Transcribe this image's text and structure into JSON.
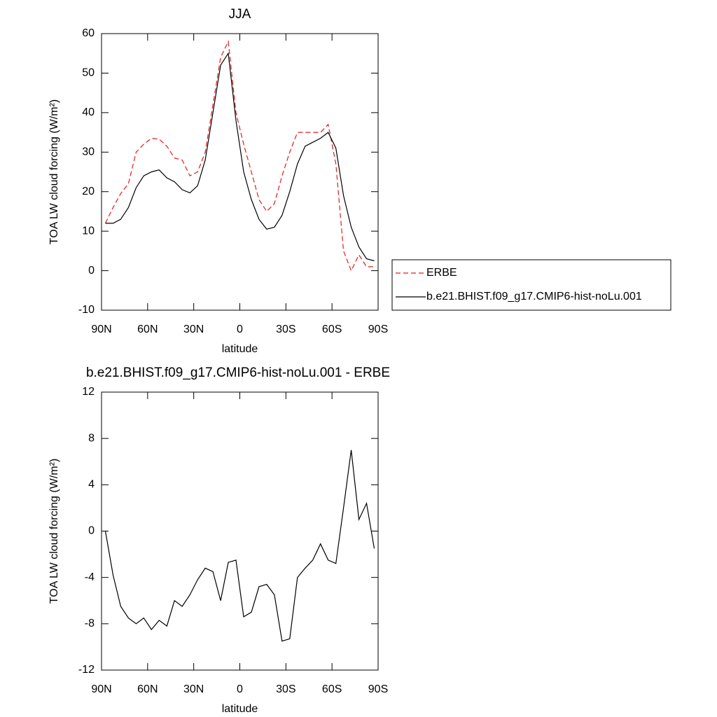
{
  "chart_data": [
    {
      "type": "line",
      "title": "JJA",
      "xlabel": "latitude",
      "ylabel": "TOA LW cloud forcing (W/m²)",
      "x": [
        87.5,
        82.5,
        77.5,
        72.5,
        67.5,
        62.5,
        57.5,
        52.5,
        47.5,
        42.5,
        37.5,
        32.5,
        27.5,
        22.5,
        17.5,
        12.5,
        7.5,
        2.5,
        -2.5,
        -7.5,
        -12.5,
        -17.5,
        -22.5,
        -27.5,
        -32.5,
        -37.5,
        -42.5,
        -47.5,
        -52.5,
        -57.5,
        -62.5,
        -67.5,
        -72.5,
        -77.5,
        -82.5,
        -87.5
      ],
      "xlim": [
        90,
        -90
      ],
      "xticks": [
        {
          "value": 90,
          "label": "90N"
        },
        {
          "value": 60,
          "label": "60N"
        },
        {
          "value": 30,
          "label": "30N"
        },
        0,
        {
          "value": -30,
          "label": "30S"
        },
        {
          "value": -60,
          "label": "60S"
        },
        {
          "value": -90,
          "label": "90S"
        }
      ],
      "ylim": [
        -10,
        60
      ],
      "yticks": [
        -10,
        0,
        10,
        20,
        30,
        40,
        50,
        60
      ],
      "legend": "right",
      "series": [
        {
          "name": "ERBE",
          "color": "#e41a1c",
          "dash": true,
          "values": [
            12,
            16,
            19.5,
            22,
            30,
            32,
            33.5,
            33.3,
            31.5,
            28.5,
            28,
            24,
            25,
            30,
            42,
            54,
            58,
            40,
            32,
            25,
            18,
            15,
            17,
            24,
            30,
            35,
            35,
            35,
            35,
            37,
            27,
            5,
            0,
            4,
            1,
            1
          ]
        },
        {
          "name": "b.e21.BHIST.f09_g17.CMIP6-hist-noLu.001",
          "color": "#000000",
          "dash": false,
          "values": [
            12,
            12,
            13,
            16,
            21,
            24,
            25,
            25.5,
            23.5,
            22.5,
            20.5,
            19.7,
            21.5,
            28,
            40,
            52,
            55,
            38,
            25,
            18,
            13,
            10.5,
            11,
            14,
            20,
            27,
            31.5,
            32.5,
            33.5,
            35,
            31,
            19,
            11,
            6,
            3,
            2.5
          ]
        }
      ]
    },
    {
      "type": "line",
      "title": "b.e21.BHIST.f09_g17.CMIP6-hist-noLu.001 - ERBE",
      "xlabel": "latitude",
      "ylabel": "TOA LW cloud forcing (W/m²)",
      "x": [
        87.5,
        82.5,
        77.5,
        72.5,
        67.5,
        62.5,
        57.5,
        52.5,
        47.5,
        42.5,
        37.5,
        32.5,
        27.5,
        22.5,
        17.5,
        12.5,
        7.5,
        2.5,
        -2.5,
        -7.5,
        -12.5,
        -17.5,
        -22.5,
        -27.5,
        -32.5,
        -37.5,
        -42.5,
        -47.5,
        -52.5,
        -57.5,
        -62.5,
        -67.5,
        -72.5,
        -77.5,
        -82.5,
        -87.5
      ],
      "xlim": [
        90,
        -90
      ],
      "xticks": [
        {
          "value": 90,
          "label": "90N"
        },
        {
          "value": 60,
          "label": "60N"
        },
        {
          "value": 30,
          "label": "30N"
        },
        0,
        {
          "value": -30,
          "label": "30S"
        },
        {
          "value": -60,
          "label": "60S"
        },
        {
          "value": -90,
          "label": "90S"
        }
      ],
      "ylim": [
        -12,
        12
      ],
      "yticks": [
        -12,
        -8,
        -4,
        0,
        4,
        8,
        12
      ],
      "series": [
        {
          "color": "#000000",
          "dash": false,
          "values": [
            0,
            -3.8,
            -6.5,
            -7.5,
            -8,
            -7.5,
            -8.5,
            -7.7,
            -8.2,
            -6,
            -6.5,
            -5.5,
            -4.2,
            -3.2,
            -3.5,
            -6,
            -2.7,
            -2.5,
            -7.4,
            -7,
            -4.8,
            -4.6,
            -5.5,
            -9.5,
            -9.3,
            -4,
            -3.2,
            -2.5,
            -1.1,
            -2.5,
            -2.8,
            2,
            7,
            1,
            2.4,
            -1.5
          ]
        }
      ]
    }
  ]
}
